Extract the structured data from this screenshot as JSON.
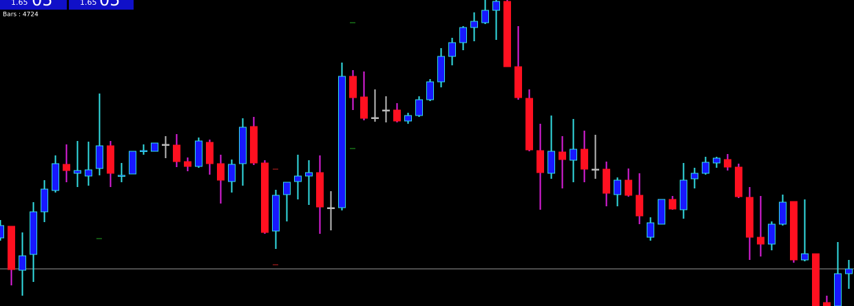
{
  "panels": [
    {
      "price": "1.65",
      "pips": "05"
    },
    {
      "price": "1.65",
      "pips": "05"
    }
  ],
  "bars_label": "Bars : 4724",
  "chart_data": {
    "type": "candlestick",
    "open": [
      99,
      116,
      52,
      75,
      137,
      168,
      206,
      193,
      189,
      200,
      233,
      189,
      192,
      225,
      225,
      235,
      234,
      210,
      203,
      238,
      207,
      181,
      207,
      261,
      208,
      109,
      162,
      181,
      189,
      194,
      143,
      143,
      334,
      304,
      274,
      285,
      285,
      269,
      277,
      300,
      326,
      363,
      383,
      405,
      412,
      430,
      443,
      348,
      302,
      226,
      193,
      224,
      212,
      228,
      199,
      199,
      162,
      183,
      161,
      100,
      119,
      155,
      140,
      185,
      193,
      208,
      213,
      202,
      158,
      100,
      90,
      119,
      152,
      67,
      76,
      5,
      0,
      47
    ],
    "high": [
      125,
      116,
      107,
      151,
      183,
      219,
      235,
      240,
      239,
      309,
      240,
      208,
      225,
      235,
      237,
      247,
      250,
      216,
      245,
      242,
      220,
      213,
      273,
      275,
      212,
      169,
      180,
      220,
      212,
      219,
      167,
      354,
      343,
      341,
      315,
      305,
      295,
      281,
      305,
      330,
      375,
      390,
      407,
      427,
      445,
      445,
      445,
      407,
      315,
      265,
      277,
      247,
      272,
      255,
      249,
      210,
      187,
      200,
      193,
      129,
      155,
      160,
      208,
      201,
      217,
      217,
      221,
      207,
      173,
      160,
      123,
      162,
      152,
      155,
      76,
      15,
      93,
      67
    ],
    "low": [
      95,
      30,
      15,
      35,
      122,
      165,
      180,
      173,
      175,
      190,
      173,
      180,
      192,
      220,
      225,
      215,
      202,
      196,
      201,
      191,
      149,
      165,
      175,
      205,
      105,
      83,
      123,
      155,
      147,
      105,
      110,
      139,
      285,
      270,
      268,
      267,
      267,
      265,
      275,
      298,
      318,
      350,
      372,
      385,
      410,
      387,
      348,
      300,
      225,
      140,
      185,
      171,
      180,
      180,
      185,
      145,
      145,
      159,
      119,
      95,
      119,
      140,
      127,
      171,
      191,
      201,
      197,
      157,
      67,
      72,
      81,
      117,
      63,
      65,
      0,
      0,
      0,
      25
    ],
    "close": [
      117,
      53,
      73,
      137,
      170,
      207,
      197,
      197,
      198,
      233,
      193,
      190,
      225,
      226,
      237,
      235,
      210,
      203,
      240,
      207,
      183,
      206,
      260,
      208,
      107,
      161,
      180,
      189,
      194,
      144,
      143,
      334,
      303,
      273,
      274,
      285,
      269,
      277,
      300,
      326,
      363,
      383,
      405,
      414,
      430,
      443,
      348,
      303,
      227,
      194,
      225,
      213,
      228,
      199,
      199,
      164,
      183,
      161,
      131,
      121,
      155,
      141,
      183,
      193,
      209,
      215,
      202,
      159,
      100,
      90,
      119,
      151,
      67,
      76,
      0,
      0,
      47,
      54
    ],
    "ylim": [
      0,
      445
    ],
    "price_line": 54,
    "up_color": "#1818ff",
    "down_color": "#ff1020",
    "up_wick_color": "#33e0e6",
    "down_wick_color": "#e020e0",
    "flat_color": "#bbbbbb",
    "price_line_color": "#9a9a9a"
  }
}
